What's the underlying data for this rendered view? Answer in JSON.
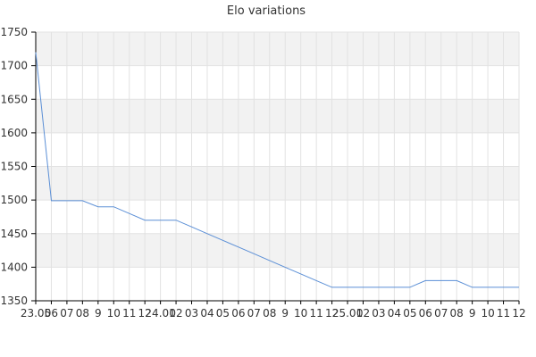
{
  "chart_data": {
    "type": "line",
    "title": "Elo variations",
    "xlabel": "",
    "ylabel": "",
    "ylim": [
      1350,
      1750
    ],
    "yticks": [
      1350,
      1400,
      1450,
      1500,
      1550,
      1600,
      1650,
      1700,
      1750
    ],
    "grid": true,
    "legend": "none",
    "x_tick_labels": [
      "23.05",
      "06",
      "07",
      "08",
      "9",
      "10",
      "11",
      "12",
      "24.01",
      "02",
      "03",
      "04",
      "05",
      "06",
      "07",
      "08",
      "9",
      "10",
      "11",
      "12",
      "25.01",
      "02",
      "03",
      "04",
      "05",
      "06",
      "07",
      "08",
      "9",
      "10",
      "11",
      "12"
    ],
    "series": [
      {
        "values": [
          1720,
          1499,
          1499,
          1499,
          1490,
          1490,
          1480,
          1470,
          1470,
          1470,
          1460,
          1450,
          1440,
          1430,
          1420,
          1410,
          1400,
          1390,
          1380,
          1370,
          1370,
          1370,
          1370,
          1370,
          1370,
          1380,
          1380,
          1380,
          1370,
          1370,
          1370,
          1370
        ],
        "color": "#5b8fd6"
      }
    ],
    "colors": {
      "band": "#f2f2f2",
      "grid": "#e2e2e2",
      "axis": "#000000"
    }
  }
}
